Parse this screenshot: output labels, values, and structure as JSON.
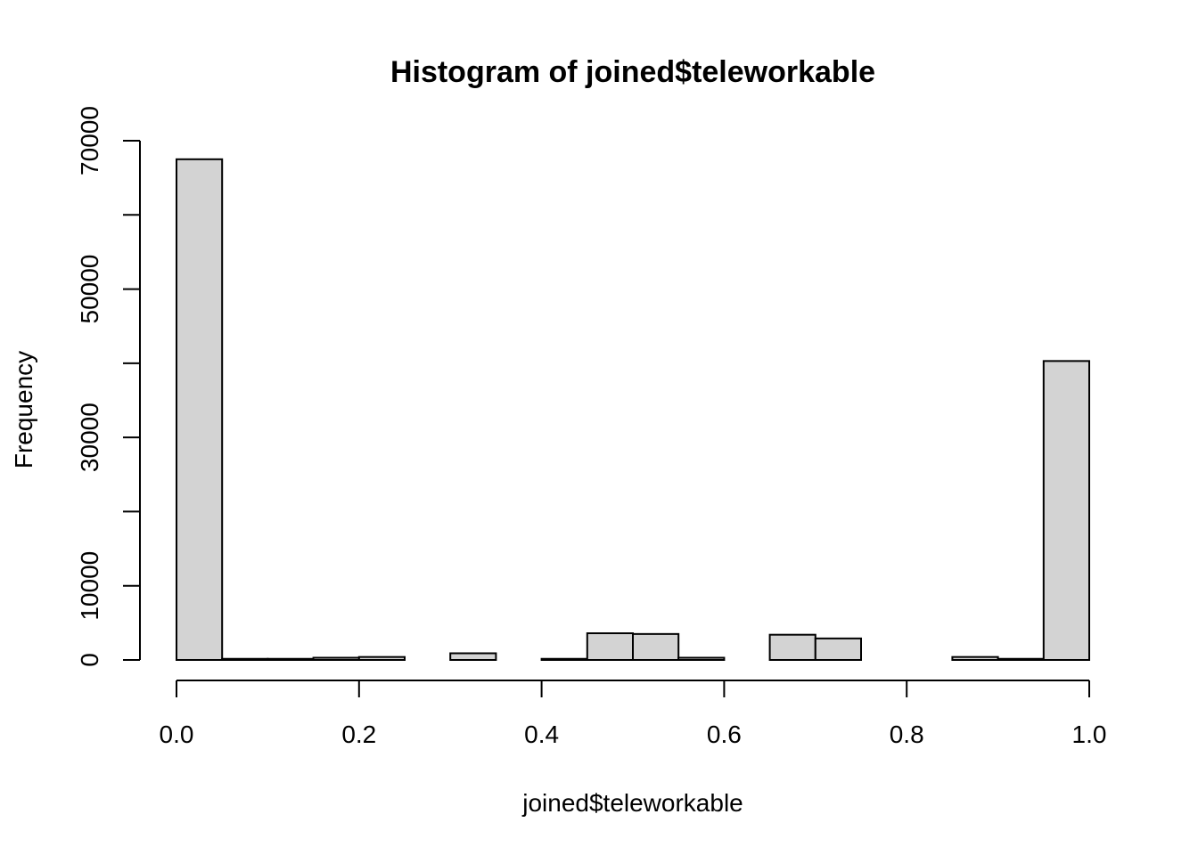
{
  "chart_data": {
    "type": "bar",
    "title": "Histogram of joined$teleworkable",
    "xlabel": "joined$teleworkable",
    "ylabel": "Frequency",
    "xlim": [
      0,
      1
    ],
    "ylim": [
      0,
      70000
    ],
    "grid": false,
    "x_ticks": [
      0.0,
      0.2,
      0.4,
      0.6,
      0.8,
      1.0
    ],
    "x_tick_labels": [
      "0.0",
      "0.2",
      "0.4",
      "0.6",
      "0.8",
      "1.0"
    ],
    "y_ticks": [
      0,
      10000,
      20000,
      30000,
      40000,
      50000,
      60000,
      70000
    ],
    "y_tick_labels": [
      "0",
      "10000",
      "",
      "30000",
      "",
      "50000",
      "",
      "70000"
    ],
    "bins": [
      {
        "x0": 0.0,
        "x1": 0.05,
        "count": 67500
      },
      {
        "x0": 0.05,
        "x1": 0.1,
        "count": 150
      },
      {
        "x0": 0.1,
        "x1": 0.15,
        "count": 150
      },
      {
        "x0": 0.15,
        "x1": 0.2,
        "count": 300
      },
      {
        "x0": 0.2,
        "x1": 0.25,
        "count": 400
      },
      {
        "x0": 0.25,
        "x1": 0.3,
        "count": 0
      },
      {
        "x0": 0.3,
        "x1": 0.35,
        "count": 900
      },
      {
        "x0": 0.35,
        "x1": 0.4,
        "count": 0
      },
      {
        "x0": 0.4,
        "x1": 0.45,
        "count": 150
      },
      {
        "x0": 0.45,
        "x1": 0.5,
        "count": 3600
      },
      {
        "x0": 0.5,
        "x1": 0.55,
        "count": 3500
      },
      {
        "x0": 0.55,
        "x1": 0.6,
        "count": 300
      },
      {
        "x0": 0.6,
        "x1": 0.65,
        "count": 0
      },
      {
        "x0": 0.65,
        "x1": 0.7,
        "count": 3400
      },
      {
        "x0": 0.7,
        "x1": 0.75,
        "count": 2900
      },
      {
        "x0": 0.75,
        "x1": 0.8,
        "count": 0
      },
      {
        "x0": 0.8,
        "x1": 0.85,
        "count": 0
      },
      {
        "x0": 0.85,
        "x1": 0.9,
        "count": 400
      },
      {
        "x0": 0.9,
        "x1": 0.95,
        "count": 150
      },
      {
        "x0": 0.95,
        "x1": 1.0,
        "count": 40300
      }
    ],
    "colors": {
      "bar_fill": "#d3d3d3",
      "bar_stroke": "#000000"
    }
  }
}
